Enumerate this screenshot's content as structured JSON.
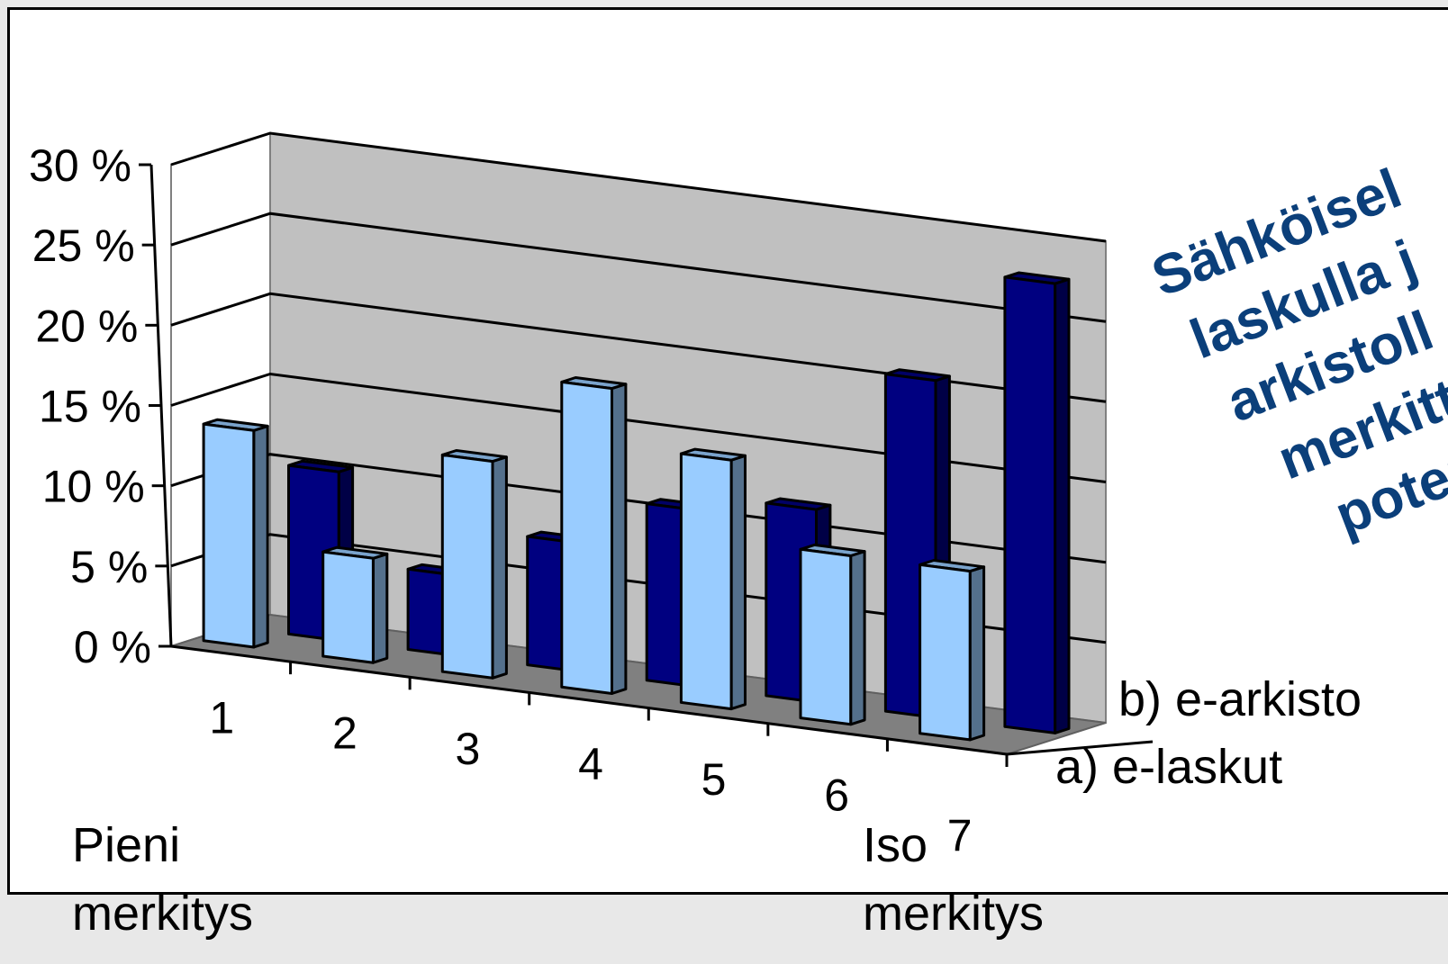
{
  "chart_data": {
    "type": "bar",
    "categories": [
      "1",
      "2",
      "3",
      "4",
      "5",
      "6",
      "7"
    ],
    "series": [
      {
        "name": "a) e-laskut",
        "values": [
          13.5,
          6.5,
          13.5,
          19.0,
          15.5,
          10.5,
          10.5
        ],
        "color": "#99ccff"
      },
      {
        "name": "b) e-arkisto",
        "values": [
          10.5,
          5.0,
          8.0,
          11.0,
          12.0,
          21.0,
          28.0
        ],
        "color": "#000080"
      }
    ],
    "yticks": [
      "0 %",
      "5 %",
      "10 %",
      "15 %",
      "20 %",
      "25 %",
      "30 %"
    ],
    "ylim": [
      0,
      30
    ],
    "grid": true,
    "x_end_labels": {
      "left": "Pieni\nmerkitys",
      "right": "Iso\nmerkitys"
    },
    "annotation": {
      "lines": [
        "Sähköisel",
        "laskulla j",
        "arkistoll",
        "merkitt",
        "poten"
      ],
      "color": "#0b3f7a"
    },
    "colors": {
      "wall": "#c0c0c0",
      "floor": "#808080",
      "frame": "#ffffff"
    }
  }
}
